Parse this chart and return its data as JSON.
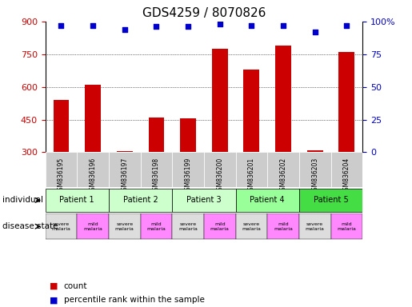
{
  "title": "GDS4259 / 8070826",
  "samples": [
    "GSM836195",
    "GSM836196",
    "GSM836197",
    "GSM836198",
    "GSM836199",
    "GSM836200",
    "GSM836201",
    "GSM836202",
    "GSM836203",
    "GSM836204"
  ],
  "counts": [
    540,
    610,
    305,
    460,
    455,
    775,
    680,
    790,
    308,
    760
  ],
  "percentiles": [
    97,
    97,
    94,
    96,
    96,
    98,
    97,
    97,
    92,
    97
  ],
  "ylim": [
    300,
    900
  ],
  "yticks": [
    300,
    450,
    600,
    750,
    900
  ],
  "right_yticks": [
    0,
    25,
    50,
    75,
    100
  ],
  "right_ylim": [
    0,
    100
  ],
  "bar_color": "#cc0000",
  "dot_color": "#0000cc",
  "patient_groups": [
    {
      "label": "Patient 1",
      "cols": [
        0,
        1
      ],
      "color": "#ccffcc"
    },
    {
      "label": "Patient 2",
      "cols": [
        2,
        3
      ],
      "color": "#ccffcc"
    },
    {
      "label": "Patient 3",
      "cols": [
        4,
        5
      ],
      "color": "#ccffcc"
    },
    {
      "label": "Patient 4",
      "cols": [
        6,
        7
      ],
      "color": "#99ff99"
    },
    {
      "label": "Patient 5",
      "cols": [
        8,
        9
      ],
      "color": "#44dd44"
    }
  ],
  "disease_states": [
    "severe\nmalaria",
    "mild\nmalaria",
    "severe\nmalaria",
    "mild\nmalaria",
    "severe\nmalaria",
    "mild\nmalaria",
    "severe\nmalaria",
    "mild\nmalaria",
    "severe\nmalaria",
    "mild\nmalaria"
  ],
  "disease_colors": [
    "#dddddd",
    "#ff88ff",
    "#dddddd",
    "#ff88ff",
    "#dddddd",
    "#ff88ff",
    "#dddddd",
    "#ff88ff",
    "#dddddd",
    "#ff88ff"
  ],
  "sample_bg_color": "#cccccc",
  "individual_label": "individual",
  "disease_label": "disease state",
  "legend_count_color": "#cc0000",
  "legend_dot_color": "#0000cc",
  "title_fontsize": 11,
  "tick_fontsize": 8,
  "label_fontsize": 9
}
